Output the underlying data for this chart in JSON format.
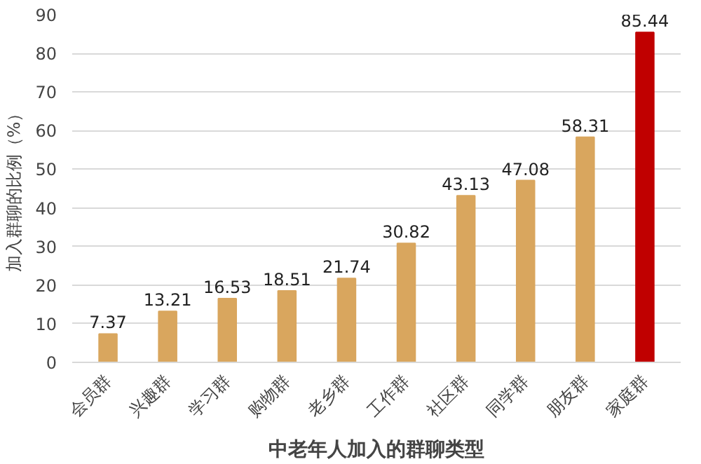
{
  "chart_data": {
    "type": "bar",
    "xlabel": "中老年人加入的群聊类型",
    "ylabel": "加入群聊的比例（%）",
    "categories": [
      "会员群",
      "兴趣群",
      "学习群",
      "购物群",
      "老乡群",
      "工作群",
      "社区群",
      "同学群",
      "朋友群",
      "家庭群"
    ],
    "values": [
      7.37,
      13.21,
      16.53,
      18.51,
      21.74,
      30.82,
      43.13,
      47.08,
      58.31,
      85.44
    ],
    "colors": [
      "#d9a65e",
      "#d9a65e",
      "#d9a65e",
      "#d9a65e",
      "#d9a65e",
      "#d9a65e",
      "#d9a65e",
      "#d9a65e",
      "#d9a65e",
      "#c00000"
    ],
    "ylim": [
      0,
      90
    ],
    "yticks": [
      0,
      10,
      20,
      30,
      40,
      50,
      60,
      70,
      80,
      90
    ],
    "grid": "y",
    "data_labels": true
  }
}
